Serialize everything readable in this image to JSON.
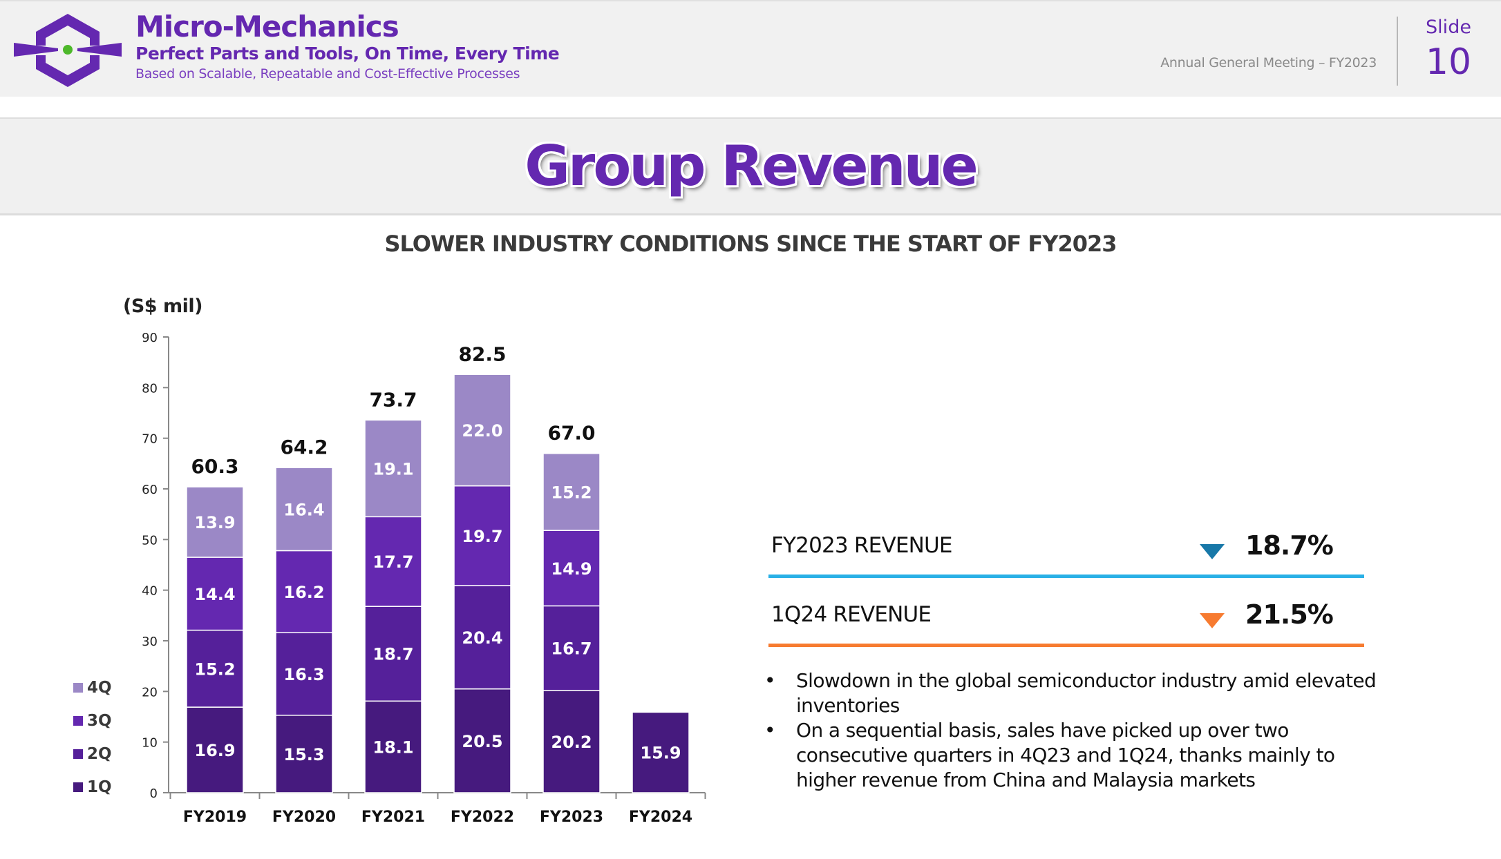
{
  "header": {
    "company_name": "Micro-Mechanics",
    "tagline": "Perfect Parts and Tools, On Time, Every Time",
    "subtagline": "Based on Scalable, Repeatable and Cost-Effective Processes",
    "meeting": "Annual General Meeting – FY2023",
    "slide_label": "Slide",
    "slide_number": "10",
    "logo_icon": "hexagon-crosshair-logo"
  },
  "title": "Group Revenue",
  "subtitle": "SLOWER INDUSTRY CONDITIONS SINCE THE START OF FY2023",
  "colors": {
    "brand": "#6428b0",
    "q1": "#461a7e",
    "q2": "#55209a",
    "q3": "#6428b0",
    "q4": "#9b88c6",
    "fy_line": "#29b0e6",
    "fy_arrow": "#1878a8",
    "q_line": "#f77b30",
    "q_arrow": "#f77b30"
  },
  "chart_data": {
    "type": "bar",
    "stacked": true,
    "title": "",
    "ylabel": "(S$ mil)",
    "xlabel": "",
    "ylim": [
      0,
      90
    ],
    "yticks": [
      0,
      10,
      20,
      30,
      40,
      50,
      60,
      70,
      80,
      90
    ],
    "grid": false,
    "legend_position": "left",
    "categories": [
      "FY2019",
      "FY2020",
      "FY2021",
      "FY2022",
      "FY2023",
      "FY2024"
    ],
    "series": [
      {
        "name": "1Q",
        "values": [
          16.9,
          15.3,
          18.1,
          20.5,
          20.2,
          15.9
        ]
      },
      {
        "name": "2Q",
        "values": [
          15.2,
          16.3,
          18.7,
          20.4,
          16.7,
          null
        ]
      },
      {
        "name": "3Q",
        "values": [
          14.4,
          16.2,
          17.7,
          19.7,
          14.9,
          null
        ]
      },
      {
        "name": "4Q",
        "values": [
          13.9,
          16.4,
          19.1,
          22.0,
          15.2,
          null
        ]
      }
    ],
    "totals": [
      "60.3",
      "64.2",
      "73.7",
      "82.5",
      "67.0",
      null
    ],
    "legend": [
      "4Q",
      "3Q",
      "2Q",
      "1Q"
    ]
  },
  "kpis": [
    {
      "label": "FY2023 REVENUE",
      "direction": "down",
      "icon": "down-triangle-icon",
      "value": "18.7%"
    },
    {
      "label": "1Q24 REVENUE",
      "direction": "down",
      "icon": "down-triangle-icon",
      "value": "21.5%"
    }
  ],
  "bullets": [
    {
      "symbol": "•",
      "text": "Slowdown in the global semiconductor industry amid elevated inventories"
    },
    {
      "symbol": "•",
      "text": "On a sequential basis, sales have picked up over two consecutive quarters in 4Q23 and 1Q24, thanks mainly to higher revenue from China and Malaysia markets"
    }
  ]
}
